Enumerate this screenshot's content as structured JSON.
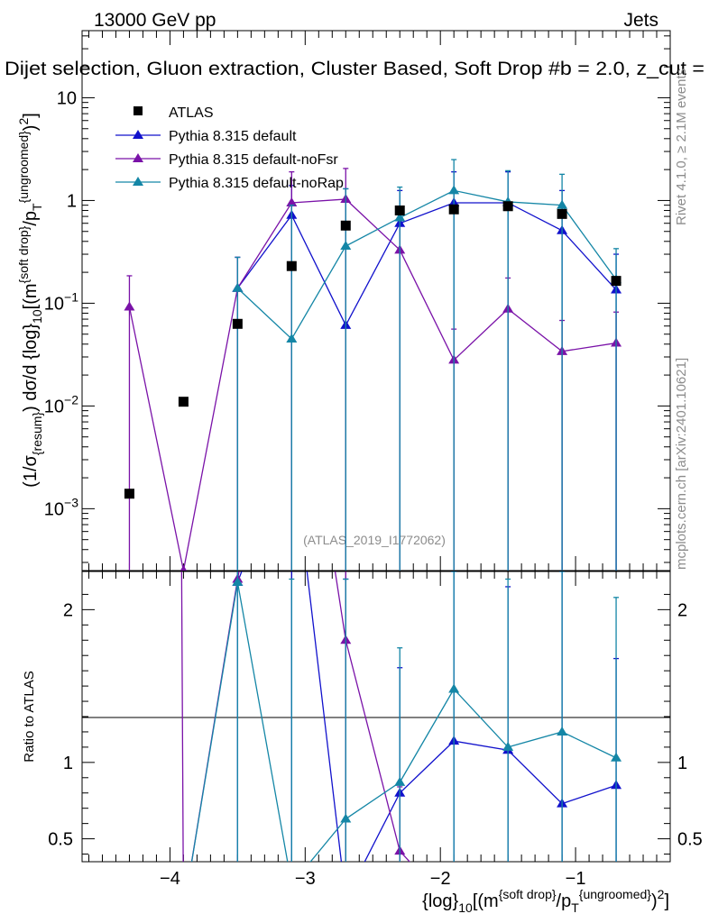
{
  "header": {
    "left": "13000 GeV pp",
    "right": "Jets",
    "title": "Dijet selection, Gluon extraction, Cluster Based, Soft Drop #b = 2.0, z_cut ="
  },
  "side": {
    "rivet": "Rivet 4.1.0, ≥ 2.1M events",
    "mcplots": "mcplots.cern.ch [arXiv:2401.10621]"
  },
  "analysis_id": "(ATLAS_2019_I1772062)",
  "colors": {
    "atlas": "#000000",
    "default": "#1111cc",
    "noFsr": "#7a12a8",
    "noRap": "#1486a6"
  },
  "chart_data": {
    "type": "line",
    "x": [
      -4.3,
      -3.9,
      -3.5,
      -3.1,
      -2.7,
      -2.3,
      -1.9,
      -1.5,
      -1.1,
      -0.7
    ],
    "xlabel": "{log}_10[(m^{soft drop}/p_T^{ungroomed})^2]",
    "ylabel": "(1/σ_{resum}) dσ/d {log}_10[(m^{soft drop}/p_T^{ungroomed})^2]",
    "ratio_ylabel": "Ratio to ATLAS",
    "xlim": [
      -4.65,
      -0.3
    ],
    "ylim": [
      0.00025,
      45
    ],
    "ratio_ylim": [
      0.35,
      2.25
    ],
    "x_ticks": [
      "−4",
      "−3",
      "−2",
      "−1"
    ],
    "x_tick_values": [
      -4,
      -3,
      -2,
      -1
    ],
    "y_ticks": [
      "10",
      "1",
      "10^-1",
      "10^-2",
      "10^-3"
    ],
    "y_tick_values": [
      10,
      1,
      0.1,
      0.01,
      0.001
    ],
    "ratio_ticks": [
      "2",
      "1",
      "0.5"
    ],
    "ratio_tick_values": [
      2,
      1,
      0.5
    ],
    "legend": [
      "ATLAS",
      "Pythia 8.315 default",
      "Pythia 8.315 default-noFsr",
      "Pythia 8.315 default-noRap"
    ],
    "data": {
      "name": "ATLAS",
      "values": [
        0.0014,
        0.011,
        0.063,
        0.23,
        0.57,
        0.8,
        0.82,
        0.88,
        0.74,
        0.165
      ]
    },
    "series": [
      {
        "name": "Pythia 8.315 default",
        "values": [
          null,
          null,
          0.14,
          0.72,
          0.061,
          0.6,
          0.95,
          0.95,
          0.51,
          0.135
        ],
        "err_up": [
          null,
          null,
          0.28,
          1.4,
          1.3,
          1.25,
          1.9,
          1.9,
          1.25,
          0.3
        ],
        "err_down": [
          null,
          null,
          0.0001,
          0.0001,
          0.0001,
          0.0001,
          0.0001,
          0.0001,
          0.0001,
          0.0001
        ],
        "ratio": [
          null,
          null,
          2.18,
          3.1,
          0.107,
          0.8,
          1.14,
          1.08,
          0.73,
          0.85
        ],
        "ratio_up": [
          null,
          null,
          2.3,
          3.4,
          2.2,
          1.62,
          2.25,
          2.15,
          2.25,
          1.68
        ]
      },
      {
        "name": "Pythia 8.315 default-noFsr",
        "values": [
          0.092,
          0.00025,
          0.14,
          0.95,
          1.03,
          0.33,
          0.028,
          0.088,
          0.034,
          0.041
        ],
        "err_up": [
          0.185,
          null,
          0.28,
          1.9,
          2.05,
          0.66,
          0.056,
          0.176,
          0.068,
          0.082
        ],
        "err_down": [
          0.0001,
          null,
          0.0001,
          0.0001,
          0.0001,
          0.0001,
          0.0001,
          0.0001,
          0.0001,
          0.0001
        ],
        "ratio": [
          65,
          0.02,
          2.2,
          4.1,
          1.8,
          0.42,
          0.034,
          0.1,
          0.046,
          0.25
        ],
        "ratio_up": [
          null,
          null,
          null,
          null,
          3.6,
          0.84,
          null,
          null,
          null,
          null
        ]
      },
      {
        "name": "Pythia 8.315 default-noRap",
        "values": [
          null,
          null,
          0.14,
          0.045,
          0.36,
          0.68,
          1.25,
          0.97,
          0.9,
          0.17
        ],
        "err_up": [
          null,
          null,
          0.28,
          0.9,
          1.3,
          1.35,
          2.5,
          1.95,
          1.8,
          0.34
        ],
        "err_down": [
          null,
          null,
          0.0001,
          0.0001,
          0.0001,
          0.0001,
          0.0001,
          0.0001,
          0.0001,
          0.0001
        ],
        "ratio": [
          null,
          0.02,
          2.18,
          0.2,
          0.63,
          0.87,
          1.48,
          1.1,
          1.2,
          1.03
        ],
        "ratio_up": [
          null,
          null,
          2.3,
          2.2,
          2.2,
          1.75,
          2.25,
          2.2,
          2.25,
          2.08
        ]
      }
    ]
  }
}
